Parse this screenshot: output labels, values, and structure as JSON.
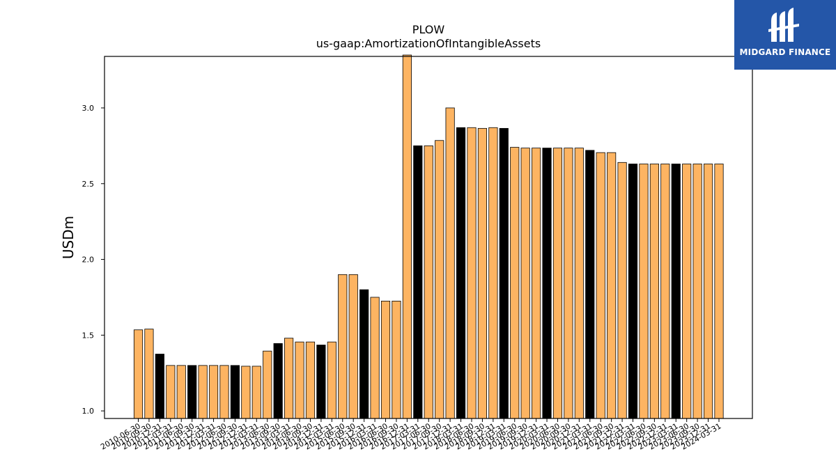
{
  "brand": {
    "name": "MIDGARD FINANCE",
    "background": "#2456a8"
  },
  "chart_data": {
    "type": "bar",
    "title": "PLOW",
    "subtitle": "us-gaap:AmortizationOfIntangibleAssets",
    "xlabel": "",
    "ylabel": "USDm",
    "ylim": [
      0.95,
      3.34
    ],
    "yticks": [
      1.0,
      1.5,
      2.0,
      2.5,
      3.0
    ],
    "ytick_labels": [
      "1.0",
      "1.5",
      "2.0",
      "2.5",
      "3.0"
    ],
    "grid": false,
    "colors": {
      "quarter": "#fdb462",
      "fiscal_year": "#000000",
      "edge": "#000000"
    },
    "categories": [
      "2010-06-30",
      "2010-09-30",
      "2010-12-31",
      "2011-03-31",
      "2011-06-30",
      "2011-09-30",
      "2011-12-31",
      "2012-03-31",
      "2012-06-30",
      "2012-09-30",
      "2012-12-31",
      "2013-03-31",
      "2013-06-30",
      "2013-09-30",
      "2014-03-31",
      "2014-06-30",
      "2014-09-30",
      "2014-12-31",
      "2015-03-31",
      "2015-06-30",
      "2015-09-30",
      "2015-12-31",
      "2016-03-31",
      "2016-06-30",
      "2016-09-30",
      "2016-12-31",
      "2017-03-31",
      "2017-06-30",
      "2017-09-30",
      "2017-12-31",
      "2018-03-31",
      "2018-06-30",
      "2018-09-30",
      "2018-12-31",
      "2019-03-31",
      "2019-06-30",
      "2019-09-30",
      "2019-12-31",
      "2020-03-31",
      "2020-06-30",
      "2020-09-30",
      "2020-12-31",
      "2021-03-31",
      "2021-06-30",
      "2021-09-30",
      "2021-12-31",
      "2022-03-31",
      "2022-06-30",
      "2022-09-30",
      "2022-12-31",
      "2023-03-31",
      "2023-06-30",
      "2023-09-30",
      "2023-12-31",
      "2024-03-31"
    ],
    "values": [
      1.535,
      1.54,
      1.375,
      1.3,
      1.3,
      1.3,
      1.3,
      1.3,
      1.3,
      1.3,
      1.295,
      1.295,
      1.395,
      1.445,
      1.48,
      1.455,
      1.455,
      1.435,
      1.455,
      1.9,
      1.9,
      1.8,
      1.75,
      1.725,
      1.725,
      3.35,
      2.75,
      2.75,
      2.785,
      3.0,
      2.87,
      2.87,
      2.865,
      2.87,
      2.865,
      2.74,
      2.735,
      2.735,
      2.735,
      2.735,
      2.735,
      2.735,
      2.72,
      2.705,
      2.705,
      2.64,
      2.63,
      2.63,
      2.63,
      2.63,
      2.63,
      2.63,
      2.63,
      2.63,
      2.63
    ],
    "kinds": [
      "q",
      "q",
      "fy",
      "q",
      "q",
      "fy",
      "q",
      "q",
      "q",
      "fy",
      "q",
      "q",
      "q",
      "fy",
      "q",
      "q",
      "q",
      "fy",
      "q",
      "q",
      "q",
      "fy",
      "q",
      "q",
      "q",
      "q",
      "fy",
      "q",
      "q",
      "q",
      "fy",
      "q",
      "q",
      "q",
      "fy",
      "q",
      "q",
      "q",
      "fy",
      "q",
      "q",
      "q",
      "fy",
      "q",
      "q",
      "q",
      "fy",
      "q",
      "q",
      "q",
      "fy",
      "q",
      "q",
      "q",
      "q"
    ]
  }
}
